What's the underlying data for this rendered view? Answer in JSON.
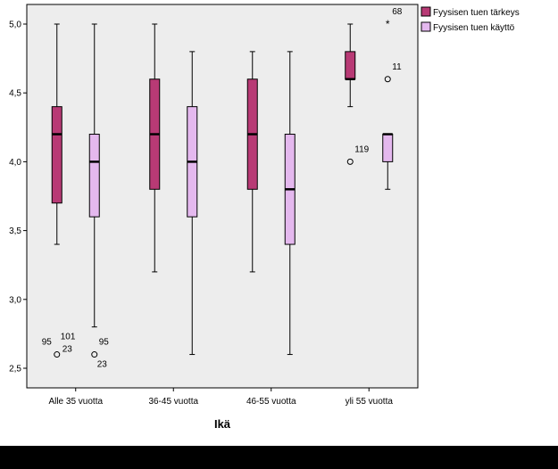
{
  "chart_data": {
    "type": "boxplot",
    "title": "",
    "xlabel": "Ikä",
    "ylabel": "",
    "ylim": [
      2.4,
      5.1
    ],
    "yticks": [
      "2,5",
      "3,0",
      "3,5",
      "4,0",
      "4,5",
      "5,0"
    ],
    "ytick_values": [
      2.5,
      3.0,
      3.5,
      4.0,
      4.5,
      5.0
    ],
    "categories": [
      "Alle 35 vuotta",
      "36-45 vuotta",
      "46-55 vuotta",
      "yli 55 vuotta"
    ],
    "grid": false,
    "legend_position": "top-right",
    "series": [
      {
        "name": "Fyysisen tuen tärkeys",
        "color": "#b83a75",
        "boxes": [
          {
            "min": 3.4,
            "q1": 3.7,
            "median": 4.2,
            "q3": 4.4,
            "max": 5.0
          },
          {
            "min": 3.2,
            "q1": 3.8,
            "median": 4.2,
            "q3": 4.6,
            "max": 5.0
          },
          {
            "min": 3.2,
            "q1": 3.8,
            "median": 4.2,
            "q3": 4.6,
            "max": 4.8
          },
          {
            "min": 4.4,
            "q1": 4.6,
            "median": 4.6,
            "q3": 4.8,
            "max": 5.0
          }
        ],
        "outliers": [
          {
            "category": 0,
            "value": 2.6,
            "symbol": "circle",
            "labels": [
              "95",
              "101",
              "23"
            ]
          },
          {
            "category": 3,
            "value": 4.0,
            "symbol": "circle",
            "labels": [
              "119"
            ]
          }
        ]
      },
      {
        "name": "Fyysisen tuen käyttö",
        "color": "#e4b8ee",
        "boxes": [
          {
            "min": 2.8,
            "q1": 3.6,
            "median": 4.0,
            "q3": 4.2,
            "max": 5.0
          },
          {
            "min": 2.6,
            "q1": 3.6,
            "median": 4.0,
            "q3": 4.4,
            "max": 4.8
          },
          {
            "min": 2.6,
            "q1": 3.4,
            "median": 3.8,
            "q3": 4.2,
            "max": 4.8
          },
          {
            "min": 3.8,
            "q1": 4.0,
            "median": 4.2,
            "q3": 4.2,
            "max": 4.2
          }
        ],
        "outliers": [
          {
            "category": 0,
            "value": 2.6,
            "symbol": "circle",
            "labels": [
              "95",
              "23"
            ]
          },
          {
            "category": 3,
            "value": 5.0,
            "symbol": "star",
            "labels": [
              "68"
            ]
          },
          {
            "category": 3,
            "value": 4.6,
            "symbol": "circle",
            "labels": [
              "11"
            ]
          }
        ]
      }
    ]
  }
}
